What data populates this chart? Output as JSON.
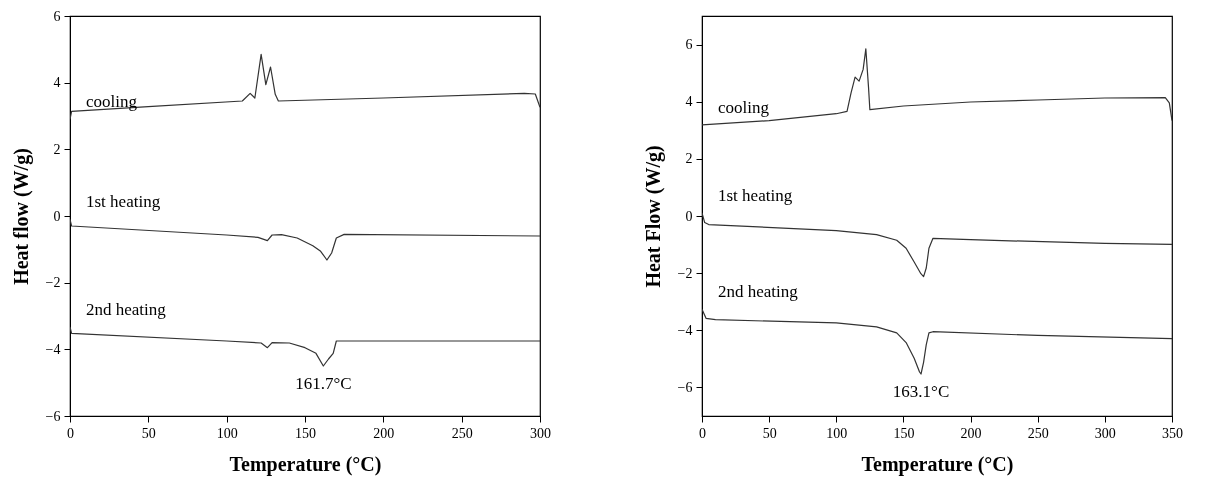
{
  "chart_data": [
    {
      "type": "line",
      "xlabel": "Temperature (°C)",
      "ylabel": "Heat flow (W/g)",
      "xlim": [
        0,
        300
      ],
      "ylim": [
        -6,
        6
      ],
      "xticks": [
        0,
        50,
        100,
        150,
        200,
        250,
        300
      ],
      "yticks": [
        -6,
        -4,
        -2,
        0,
        2,
        4,
        6
      ],
      "grid": false,
      "line_style": "solid",
      "annotations": [
        {
          "text": "161.7°C",
          "x": 161.7,
          "y": -4.5
        }
      ],
      "series": [
        {
          "name": "cooling",
          "color": "#333333",
          "x": [
            0,
            1,
            50,
            110,
            115,
            118,
            122,
            125,
            128,
            131,
            133,
            200,
            290,
            297,
            300
          ],
          "values": [
            2.9,
            3.14,
            3.28,
            3.45,
            3.68,
            3.54,
            4.85,
            3.94,
            4.47,
            3.65,
            3.45,
            3.54,
            3.68,
            3.66,
            3.26
          ]
        },
        {
          "name": "1st heating",
          "color": "#333333",
          "x": [
            0,
            1,
            100,
            120,
            126,
            129,
            135,
            145,
            155,
            160,
            164,
            167,
            170,
            175,
            300
          ],
          "values": [
            -0.1,
            -0.3,
            -0.57,
            -0.64,
            -0.74,
            -0.57,
            -0.56,
            -0.66,
            -0.89,
            -1.06,
            -1.32,
            -1.11,
            -0.66,
            -0.55,
            -0.6
          ]
        },
        {
          "name": "2nd heating",
          "color": "#333333",
          "x": [
            0,
            1,
            100,
            122,
            126,
            129,
            140,
            150,
            157,
            161.7,
            165,
            168,
            170,
            300
          ],
          "values": [
            -3.33,
            -3.52,
            -3.75,
            -3.81,
            -3.95,
            -3.8,
            -3.81,
            -3.95,
            -4.12,
            -4.5,
            -4.29,
            -4.12,
            -3.75,
            -3.75
          ]
        }
      ]
    },
    {
      "type": "line",
      "xlabel": "Temperature (°C)",
      "ylabel": "Heat Flow (W/g)",
      "xlim": [
        0,
        350
      ],
      "ylim": [
        -7,
        7
      ],
      "xticks": [
        0,
        50,
        100,
        150,
        200,
        250,
        300,
        350
      ],
      "yticks": [
        -6,
        -4,
        -2,
        0,
        2,
        4,
        6
      ],
      "grid": false,
      "line_style": "solid",
      "annotations": [
        {
          "text": "163.1°C",
          "x": 163.1,
          "y": -5.53
        }
      ],
      "series": [
        {
          "name": "cooling",
          "color": "#333333",
          "x": [
            0,
            50,
            100,
            108,
            111,
            114,
            117,
            120,
            122,
            124,
            125,
            150,
            200,
            250,
            300,
            345,
            348,
            350
          ],
          "values": [
            3.19,
            3.34,
            3.58,
            3.66,
            4.31,
            4.86,
            4.72,
            5.13,
            5.85,
            4.51,
            3.72,
            3.85,
            3.99,
            4.06,
            4.13,
            4.14,
            3.96,
            3.34
          ]
        },
        {
          "name": "1st heating",
          "color": "#333333",
          "x": [
            0,
            2,
            5,
            100,
            130,
            145,
            152,
            158,
            163,
            165,
            167,
            169,
            172,
            200,
            300,
            350
          ],
          "values": [
            0.11,
            -0.23,
            -0.3,
            -0.51,
            -0.65,
            -0.85,
            -1.13,
            -1.61,
            -2.02,
            -2.12,
            -1.82,
            -1.13,
            -0.78,
            -0.83,
            -0.96,
            -0.99
          ]
        },
        {
          "name": "2nd heating",
          "color": "#333333",
          "x": [
            0,
            3,
            10,
            100,
            130,
            145,
            152,
            158,
            162,
            163.1,
            165,
            167,
            169,
            172,
            250,
            350
          ],
          "values": [
            -3.26,
            -3.58,
            -3.63,
            -3.74,
            -3.88,
            -4.09,
            -4.43,
            -4.98,
            -5.46,
            -5.53,
            -5.12,
            -4.5,
            -4.09,
            -4.05,
            -4.18,
            -4.29
          ]
        }
      ]
    }
  ]
}
